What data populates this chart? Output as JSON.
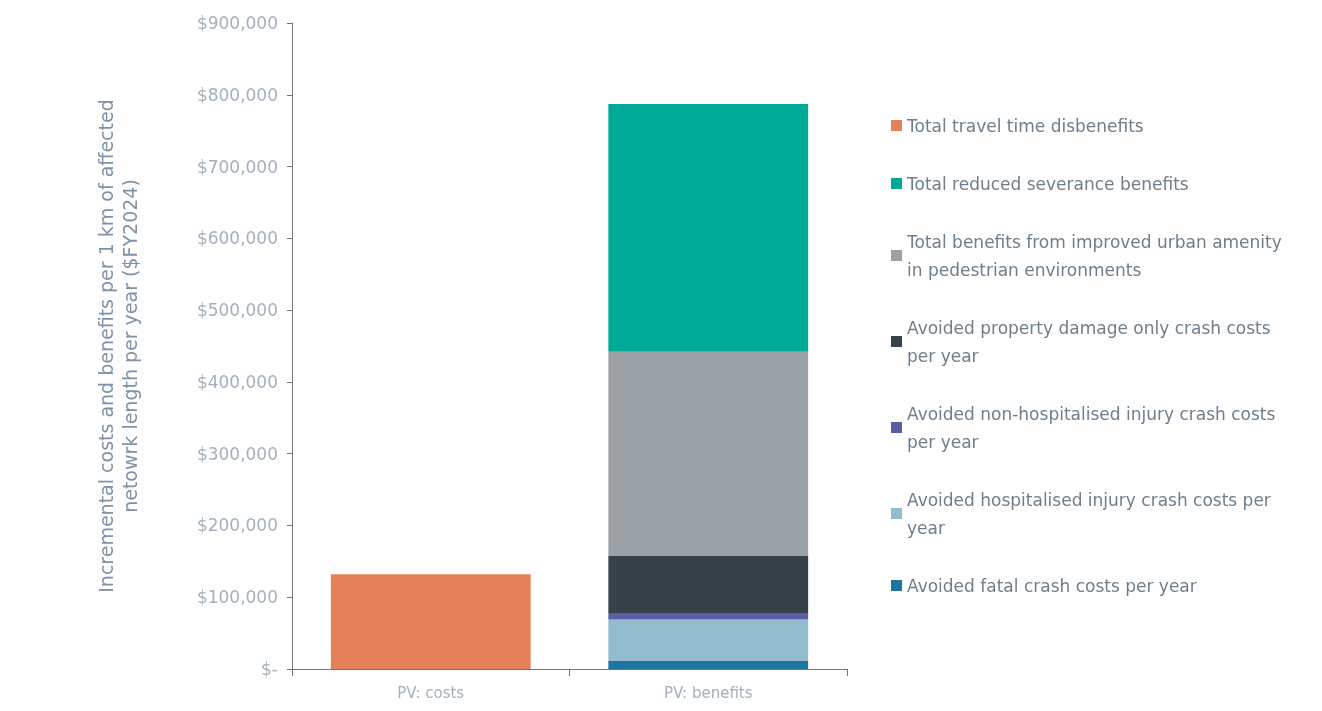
{
  "chart_data": {
    "type": "bar",
    "stacked": true,
    "ylabel": "Incremental costs and benefits per 1 km of affected netowrk length per year ($FY2024)",
    "categories": [
      "PV: costs",
      "PV: benefits"
    ],
    "series": [
      {
        "name": "Avoided fatal crash costs per year",
        "color": "#1d76a0",
        "values": [
          null,
          11000
        ]
      },
      {
        "name": "Avoided hospitalised injury crash costs per year",
        "color": "#93bccf",
        "values": [
          null,
          58000
        ]
      },
      {
        "name": "Avoided non-hospitalised injury crash costs per year",
        "color": "#5b5ea6",
        "values": [
          null,
          8000
        ]
      },
      {
        "name": "Avoided property damage only crash costs per year",
        "color": "#37414a",
        "values": [
          null,
          81000
        ]
      },
      {
        "name": "Total benefits from improved urban amenity in pedestrian environments",
        "color": "#9ba0a4",
        "values": [
          null,
          284000
        ]
      },
      {
        "name": "Total reduced severance benefits",
        "color": "#00a896",
        "values": [
          null,
          345000
        ]
      },
      {
        "name": "Total travel time disbenefits",
        "color": "#e5805b",
        "values": [
          132000,
          null
        ]
      }
    ],
    "ylim": [
      0,
      900000
    ],
    "yticks": [
      {
        "value": 0,
        "label": "$-"
      },
      {
        "value": 100000,
        "label": "$100,000"
      },
      {
        "value": 200000,
        "label": "$200,000"
      },
      {
        "value": 300000,
        "label": "$300,000"
      },
      {
        "value": 400000,
        "label": "$400,000"
      },
      {
        "value": 500000,
        "label": "$500,000"
      },
      {
        "value": 600000,
        "label": "$600,000"
      },
      {
        "value": 700000,
        "label": "$700,000"
      },
      {
        "value": 800000,
        "label": "$800,000"
      },
      {
        "value": 900000,
        "label": "$900,000"
      }
    ],
    "grid": false,
    "legend": "right"
  }
}
